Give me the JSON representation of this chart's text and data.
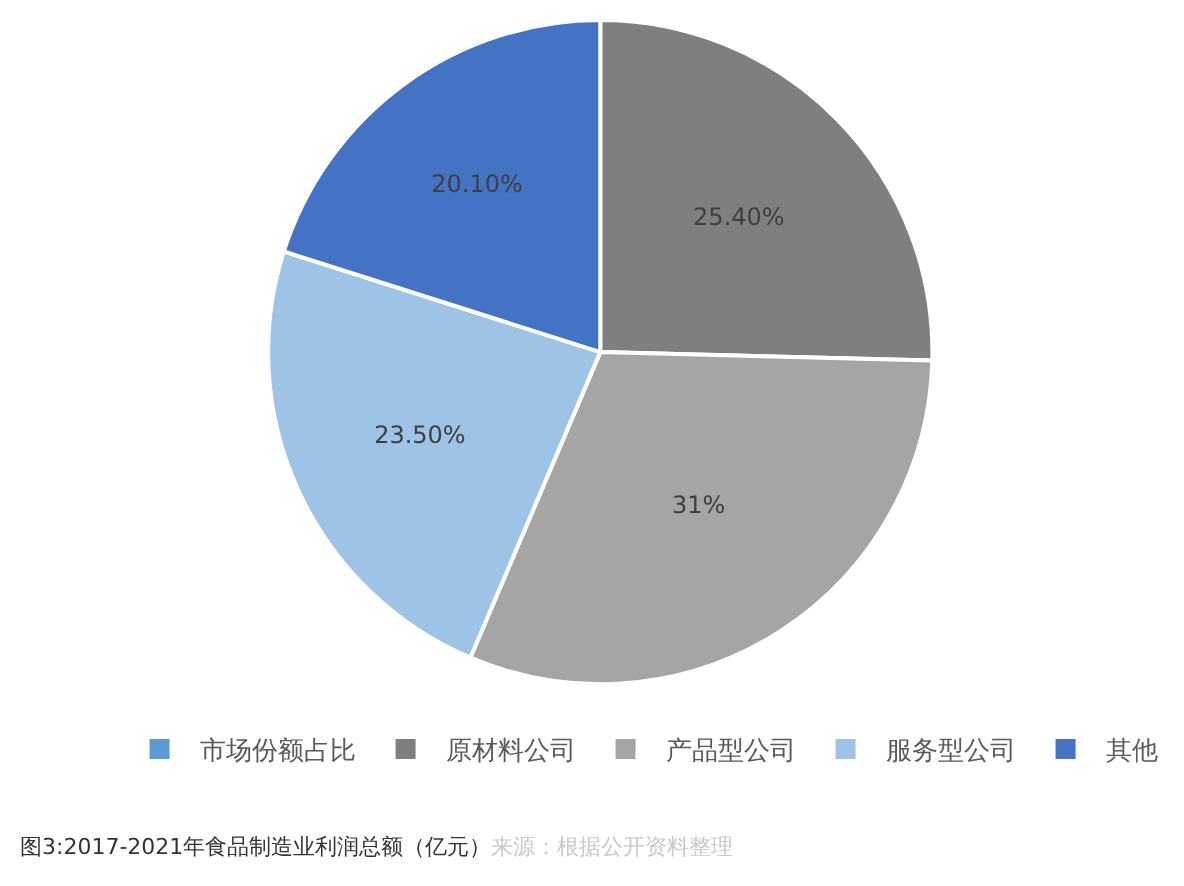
{
  "chart_data": {
    "type": "pie",
    "categories": [
      "市场份额占比",
      "原材料公司",
      "产品型公司",
      "服务型公司",
      "其他"
    ],
    "values": [
      0,
      25.4,
      31,
      23.5,
      20.1
    ],
    "value_labels": [
      null,
      "25.40%",
      "31%",
      "23.50%",
      "20.10%"
    ],
    "colors": [
      "#5b9bd5",
      "#7f7f7f",
      "#a5a5a5",
      "#9dc3e6",
      "#4472c4"
    ],
    "legend": "bottom",
    "annotations": [
      "图3:2017-2021年食品制造业利润总额（亿元）",
      "来源：根据公开资料整理"
    ]
  }
}
